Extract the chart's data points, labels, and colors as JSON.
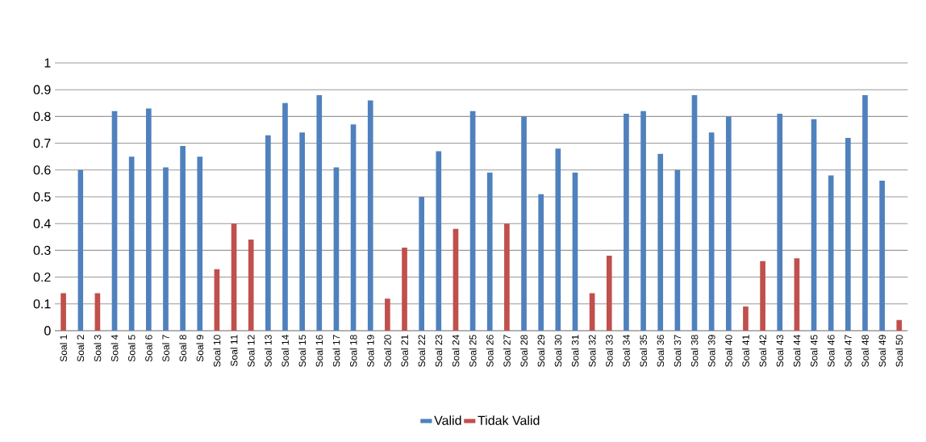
{
  "chart_data": {
    "type": "bar",
    "categories": [
      "Soal 1",
      "Soal 2",
      "Soal 3",
      "Soal 4",
      "Soal 5",
      "Soal 6",
      "Soal 7",
      "Soal 8",
      "Soal 9",
      "Soal 10",
      "Soal 11",
      "Soal 12",
      "Soal 13",
      "Soal 14",
      "Soal 15",
      "Soal 16",
      "Soal 17",
      "Soal 18",
      "Soal 19",
      "Soal 20",
      "Soal 21",
      "Soal 22",
      "Soal 23",
      "Soal 24",
      "Soal 25",
      "Soal 26",
      "Soal 27",
      "Soal 28",
      "Soal 29",
      "Soal 30",
      "Soal 31",
      "Soal 32",
      "Soal 33",
      "Soal 34",
      "Soal 35",
      "Soal 36",
      "Soal 37",
      "Soal 38",
      "Soal 39",
      "Soal 40",
      "Soal 41",
      "Soal 42",
      "Soal 43",
      "Soal 44",
      "Soal 45",
      "Soal 46",
      "Soal 47",
      "Soal 48",
      "Soal 49",
      "Soal 50"
    ],
    "series": [
      {
        "name": "Valid",
        "color": "#4f81bd",
        "values": [
          null,
          0.6,
          null,
          0.82,
          0.65,
          0.83,
          0.61,
          0.69,
          0.65,
          null,
          null,
          null,
          0.73,
          0.85,
          0.74,
          0.88,
          0.61,
          0.77,
          0.86,
          null,
          null,
          0.5,
          0.67,
          null,
          0.82,
          0.59,
          null,
          0.8,
          0.51,
          0.68,
          0.59,
          null,
          null,
          0.81,
          0.82,
          0.66,
          0.6,
          0.88,
          0.74,
          0.8,
          null,
          null,
          0.81,
          null,
          0.79,
          0.58,
          0.72,
          0.88,
          0.56,
          null
        ]
      },
      {
        "name": "Tidak Valid",
        "color": "#c0504d",
        "values": [
          0.14,
          null,
          0.14,
          null,
          null,
          null,
          null,
          null,
          null,
          0.23,
          0.4,
          0.34,
          null,
          null,
          null,
          null,
          null,
          null,
          null,
          0.12,
          0.31,
          null,
          null,
          0.38,
          null,
          null,
          0.4,
          null,
          null,
          null,
          null,
          0.14,
          0.28,
          null,
          null,
          null,
          null,
          null,
          null,
          null,
          0.09,
          0.26,
          null,
          0.27,
          null,
          null,
          null,
          null,
          null,
          0.04
        ]
      }
    ],
    "ylim": [
      0,
      1
    ],
    "yticks": [
      0,
      0.1,
      0.2,
      0.3,
      0.4,
      0.5,
      0.6,
      0.7,
      0.8,
      0.9,
      1
    ],
    "grid": "y",
    "legend": "bottom"
  }
}
